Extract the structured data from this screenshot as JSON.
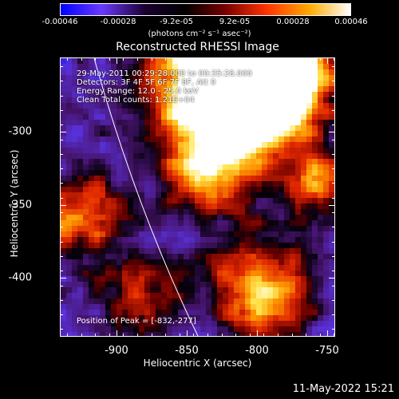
{
  "colorbar": {
    "ticks": [
      "-0.00046",
      "-0.00028",
      "-9.2e-05",
      "9.2e-05",
      "0.00028",
      "0.00046"
    ],
    "units": "(photons cm⁻² s⁻¹ asec⁻²)",
    "colors": [
      "#0000ff",
      "#6a3aff",
      "#1a0030",
      "#000000",
      "#7a0000",
      "#ff3300",
      "#ffaa00",
      "#ffffff"
    ]
  },
  "plot": {
    "title": "Reconstructed RHESSI Image",
    "info_lines": [
      "29-May-2011 00:29:28.000 to 00:35:28.000",
      "Detectors: 3F 4F 5F 6F 7F 8F, Att 0",
      "Energy Range: 12.0 - 25.0 keV",
      "Clean   Total counts: 1.21E+04"
    ],
    "peak_label": "Position of Peak = [-832,-277]"
  },
  "chart_data": {
    "type": "heatmap",
    "title": "Reconstructed RHESSI Image",
    "xlabel": "Heliocentric X (arcsec)",
    "ylabel": "Heliocentric Y (arcsec)",
    "xticks": [
      "-900",
      "-850",
      "-800",
      "-750"
    ],
    "yticks": [
      "-300",
      "-350",
      "-400"
    ],
    "xlim": [
      -937,
      -741
    ],
    "ylim": [
      -442,
      -270
    ],
    "colorbar_range": [
      -0.00046,
      0.00046
    ],
    "peak": [
      -832,
      -277
    ]
  },
  "footer": {
    "timestamp": "11-May-2022 15:21"
  }
}
